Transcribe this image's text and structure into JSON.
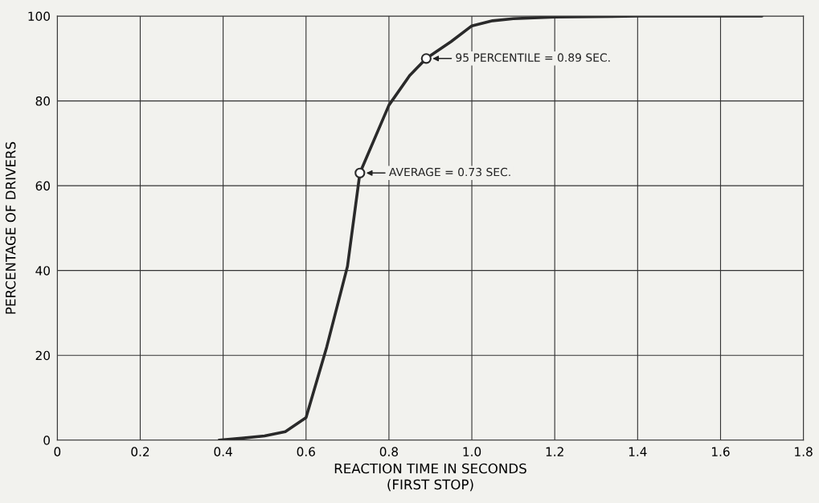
{
  "chart_data": {
    "type": "line",
    "xlabel": "REACTION TIME IN SECONDS\n(FIRST STOP)",
    "ylabel": "PERCENTAGE OF DRIVERS",
    "x": [
      0.39,
      0.45,
      0.5,
      0.55,
      0.6,
      0.65,
      0.7,
      0.73,
      0.8,
      0.85,
      0.89,
      0.95,
      1.0,
      1.05,
      1.1,
      1.2,
      1.4,
      1.7
    ],
    "series": [
      {
        "color": "#2a2a2a",
        "values": [
          0,
          0.5,
          1,
          2,
          5.3,
          22,
          41,
          63,
          79,
          86,
          90,
          94,
          97.7,
          98.9,
          99.4,
          99.8,
          100,
          100
        ]
      }
    ],
    "annotations": [
      {
        "text": "95 PERCENTILE = 0.89 SEC.",
        "x": 0.89,
        "y": 90
      },
      {
        "text": "AVERAGE = 0.73 SEC.",
        "x": 0.73,
        "y": 63
      }
    ],
    "xlim": [
      0,
      1.8
    ],
    "xticks": [
      0,
      0.2,
      0.4,
      0.6,
      0.8,
      {
        "value": 1.0,
        "label": "1.0"
      },
      1.2,
      1.4,
      1.6,
      1.8
    ],
    "ylim": [
      0,
      100
    ],
    "yticks": [
      0,
      20,
      40,
      60,
      80,
      100
    ],
    "grid": true,
    "marker": "none",
    "line_style": "solid"
  }
}
